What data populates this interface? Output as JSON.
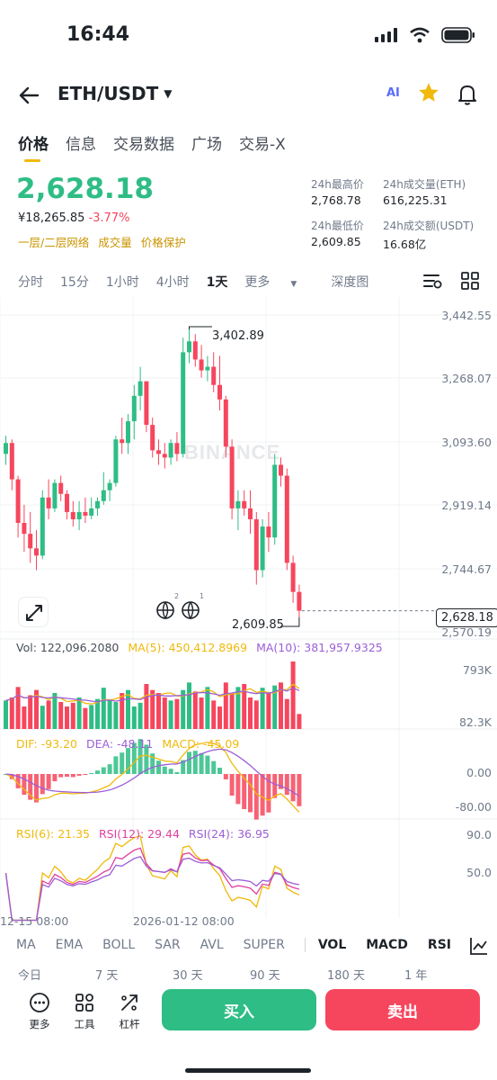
{
  "status_bar": {
    "time": "16:44"
  },
  "header": {
    "pair": "ETH/USDT",
    "ai_label": "AI"
  },
  "main_tabs": [
    "价格",
    "信息",
    "交易数据",
    "广场",
    "交易-X"
  ],
  "price": {
    "last": "2,628.18",
    "cny": "¥18,265.85",
    "change": "-3.77%",
    "chips": [
      "一层/二层网络",
      "成交量",
      "价格保护"
    ]
  },
  "stats": {
    "high_label": "24h最高价",
    "high": "2,768.78",
    "vol_eth_label": "24h成交量(ETH)",
    "vol_eth": "616,225.31",
    "low_label": "24h最低价",
    "low": "2,609.85",
    "vol_usdt_label": "24h成交额(USDT)",
    "vol_usdt": "16.68亿"
  },
  "intervals": [
    "分时",
    "15分",
    "1小时",
    "4小时",
    "1天",
    "更多",
    "深度图"
  ],
  "active_interval": "1天",
  "chart_data": {
    "type": "candlestick",
    "y_axis_ticks": [
      "3,442.55",
      "3,268.07",
      "3,093.60",
      "2,919.14",
      "2,744.67",
      "2,570.19"
    ],
    "high_marker": "3,402.89",
    "low_marker": "2,609.85",
    "current_price": "2,628.18",
    "watermark": "BINANCE",
    "badges": [
      "2",
      "1"
    ],
    "candles": [
      [
        3060,
        3110,
        3030,
        3090
      ],
      [
        3090,
        3100,
        2960,
        2990
      ],
      [
        2990,
        3000,
        2830,
        2870
      ],
      [
        2870,
        2920,
        2790,
        2840
      ],
      [
        2840,
        2900,
        2760,
        2800
      ],
      [
        2800,
        2850,
        2740,
        2780
      ],
      [
        2780,
        2960,
        2770,
        2940
      ],
      [
        2940,
        2990,
        2880,
        2910
      ],
      [
        2910,
        2990,
        2900,
        2980
      ],
      [
        2980,
        3000,
        2930,
        2950
      ],
      [
        2950,
        2960,
        2880,
        2900
      ],
      [
        2900,
        2930,
        2860,
        2880
      ],
      [
        2880,
        2930,
        2850,
        2900
      ],
      [
        2900,
        2940,
        2870,
        2890
      ],
      [
        2890,
        2940,
        2880,
        2910
      ],
      [
        2910,
        2940,
        2890,
        2930
      ],
      [
        2930,
        3010,
        2920,
        2960
      ],
      [
        2960,
        2990,
        2930,
        2980
      ],
      [
        2980,
        3110,
        2970,
        3100
      ],
      [
        3100,
        3160,
        3060,
        3090
      ],
      [
        3090,
        3170,
        3060,
        3150
      ],
      [
        3150,
        3250,
        3100,
        3220
      ],
      [
        3220,
        3300,
        3180,
        3260
      ],
      [
        3260,
        3260,
        3120,
        3140
      ],
      [
        3140,
        3160,
        3050,
        3070
      ],
      [
        3070,
        3100,
        3030,
        3060
      ],
      [
        3060,
        3090,
        3020,
        3050
      ],
      [
        3050,
        3100,
        3030,
        3090
      ],
      [
        3090,
        3120,
        3040,
        3060
      ],
      [
        3060,
        3380,
        3050,
        3340
      ],
      [
        3340,
        3403,
        3310,
        3370
      ],
      [
        3370,
        3390,
        3300,
        3320
      ],
      [
        3320,
        3360,
        3270,
        3290
      ],
      [
        3290,
        3330,
        3260,
        3300
      ],
      [
        3300,
        3340,
        3230,
        3250
      ],
      [
        3250,
        3330,
        3180,
        3210
      ],
      [
        3210,
        3220,
        3050,
        3080
      ],
      [
        3080,
        3100,
        2880,
        2910
      ],
      [
        2910,
        2960,
        2850,
        2930
      ],
      [
        2930,
        2960,
        2890,
        2910
      ],
      [
        2910,
        2960,
        2840,
        2880
      ],
      [
        2880,
        2900,
        2700,
        2740
      ],
      [
        2740,
        2880,
        2720,
        2860
      ],
      [
        2860,
        2900,
        2790,
        2830
      ],
      [
        2830,
        3060,
        2810,
        3030
      ],
      [
        3030,
        3050,
        2970,
        3000
      ],
      [
        3000,
        3020,
        2740,
        2760
      ],
      [
        2760,
        2780,
        2650,
        2680
      ],
      [
        2680,
        2700,
        2609.85,
        2628.18
      ]
    ],
    "volume": {
      "label": "Vol: 122,096.2080",
      "ma5_label": "MA(5): 450,412.8969",
      "ma10_label": "MA(10): 381,957.9325",
      "ticks": [
        "793K",
        "82.3K"
      ],
      "values": [
        380,
        420,
        560,
        300,
        450,
        520,
        310,
        380,
        480,
        360,
        300,
        350,
        420,
        280,
        320,
        400,
        550,
        380,
        360,
        480,
        520,
        300,
        350,
        600,
        520,
        480,
        420,
        380,
        400,
        520,
        620,
        500,
        420,
        560,
        380,
        300,
        620,
        480,
        560,
        600,
        420,
        380,
        550,
        480,
        580,
        620,
        400,
        900,
        200
      ]
    },
    "macd": {
      "dif_label": "DIF: -93.20",
      "dea_label": "DEA: -48.11",
      "macd_label": "MACD: -45.09",
      "ticks": [
        "0.00",
        "-80.00"
      ]
    },
    "rsi": {
      "rsi6_label": "RSI(6): 21.35",
      "rsi12_label": "RSI(12): 29.44",
      "rsi24_label": "RSI(24): 36.95",
      "ticks": [
        "90.0",
        "50.0"
      ]
    },
    "x_axis_labels": [
      "12-15 08:00",
      "2026-01-12 08:00"
    ]
  },
  "indicator_tabs": [
    "MA",
    "EMA",
    "BOLL",
    "SAR",
    "AVL",
    "SUPER",
    "VOL",
    "MACD",
    "RSI"
  ],
  "range_tabs": [
    "今日",
    "7 天",
    "30 天",
    "90 天",
    "180 天",
    "1 年"
  ],
  "bottom": {
    "more": "更多",
    "tools": "工具",
    "margin": "杠杆",
    "buy": "买入",
    "sell": "卖出"
  },
  "colors": {
    "up": "#2ebd85",
    "down": "#f6465d",
    "accent": "#f0b90b",
    "ma5": "#f0b90b",
    "ma10": "#9c5fd6",
    "rsi12": "#e040a0"
  }
}
